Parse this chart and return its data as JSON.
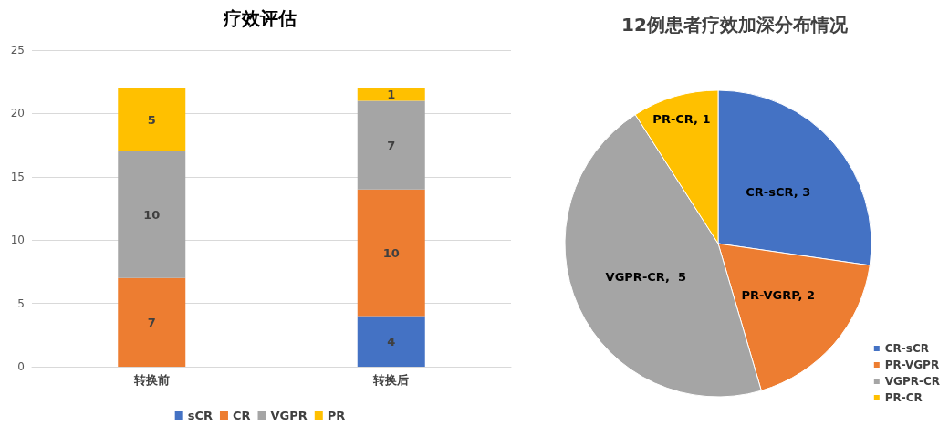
{
  "chart_data": [
    {
      "type": "bar",
      "title": "疗效评估",
      "categories": [
        "转换前",
        "转换后"
      ],
      "stacked": true,
      "series": [
        {
          "name": "sCR",
          "color": "#4472c4",
          "values": [
            null,
            4
          ]
        },
        {
          "name": "CR",
          "color": "#ed7d31",
          "values": [
            7,
            10
          ]
        },
        {
          "name": "VGPR",
          "color": "#a5a5a5",
          "values": [
            10,
            7
          ]
        },
        {
          "name": "PR",
          "color": "#ffc000",
          "values": [
            5,
            1
          ]
        }
      ],
      "ylim": [
        0,
        25
      ],
      "yticks": [
        0,
        5,
        10,
        15,
        20,
        25
      ],
      "grid": "y",
      "legend": "bottom",
      "data_labels": true
    },
    {
      "type": "pie",
      "title": "12例患者疗效加深分布情况",
      "categories": [
        "CR-sCR",
        "PR-VGPR",
        "VGPR-CR",
        "PR-CR"
      ],
      "values": [
        3,
        2,
        5,
        1
      ],
      "value_labels": [
        "CR-sCR, 3",
        "PR-VGRP, 2",
        "VGPR-CR,  5",
        "PR-CR, 1"
      ],
      "colors": [
        "#4472c4",
        "#ed7d31",
        "#a5a5a5",
        "#ffc000"
      ],
      "legend": "bottom right"
    }
  ]
}
